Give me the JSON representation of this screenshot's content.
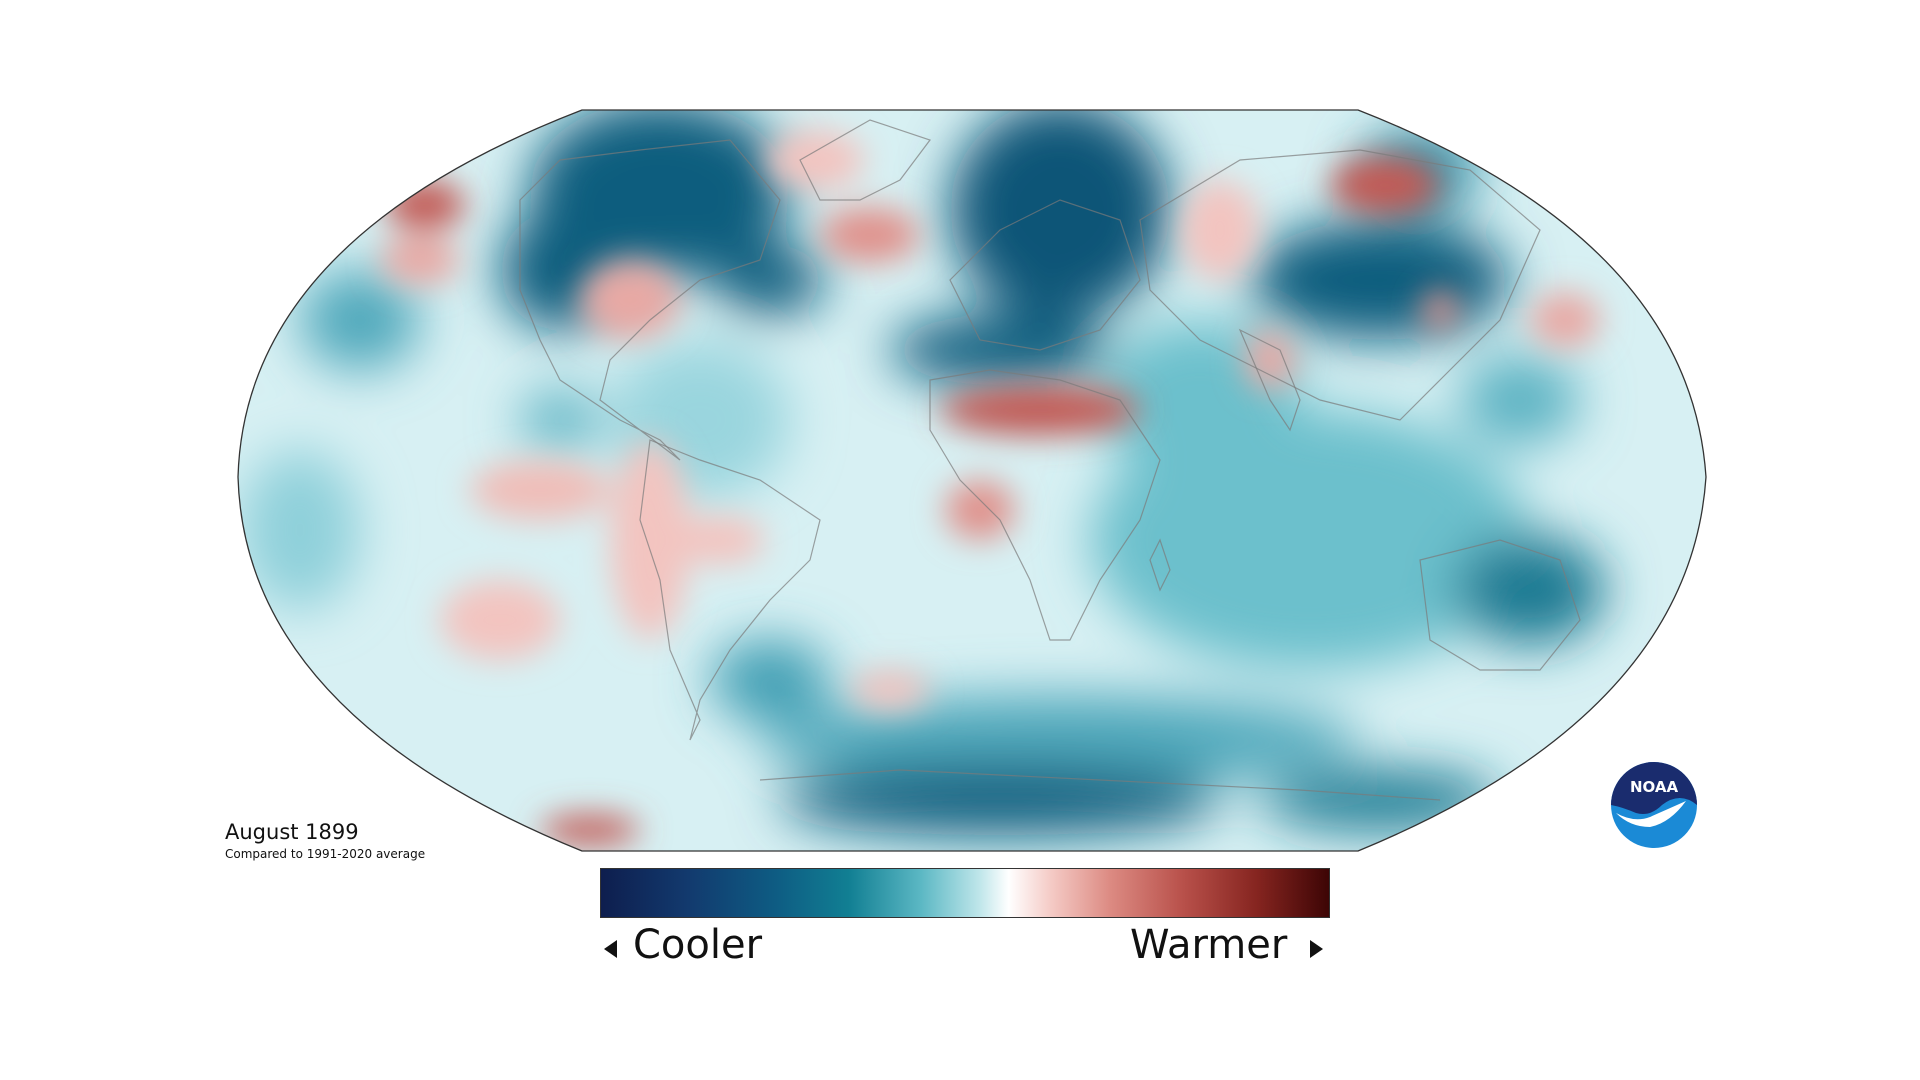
{
  "caption": {
    "title": "August 1899",
    "subtitle": "Compared to 1991-2020 average"
  },
  "legend": {
    "cooler_label": "Cooler",
    "warmer_label": "Warmer",
    "colors": [
      "#0e1e4e",
      "#0e5c83",
      "#5cb8c4",
      "#ffffff",
      "#dc8a82",
      "#862520",
      "#3d0505"
    ]
  },
  "logo": {
    "text": "NOAA",
    "colors": [
      "#1a2c6e",
      "#1b8ad6",
      "#ffffff"
    ]
  },
  "map": {
    "projection": "Robinson",
    "fill_colors": {
      "ocean_base": "#d7f0f3",
      "cool_strong": "#0d5d7e",
      "cool_mid": "#3e9db2",
      "cool_light": "#8fd0da",
      "warm_light": "#f3c4c0",
      "warm_mid": "#e0928c",
      "warm_strong": "#c25a55"
    }
  }
}
